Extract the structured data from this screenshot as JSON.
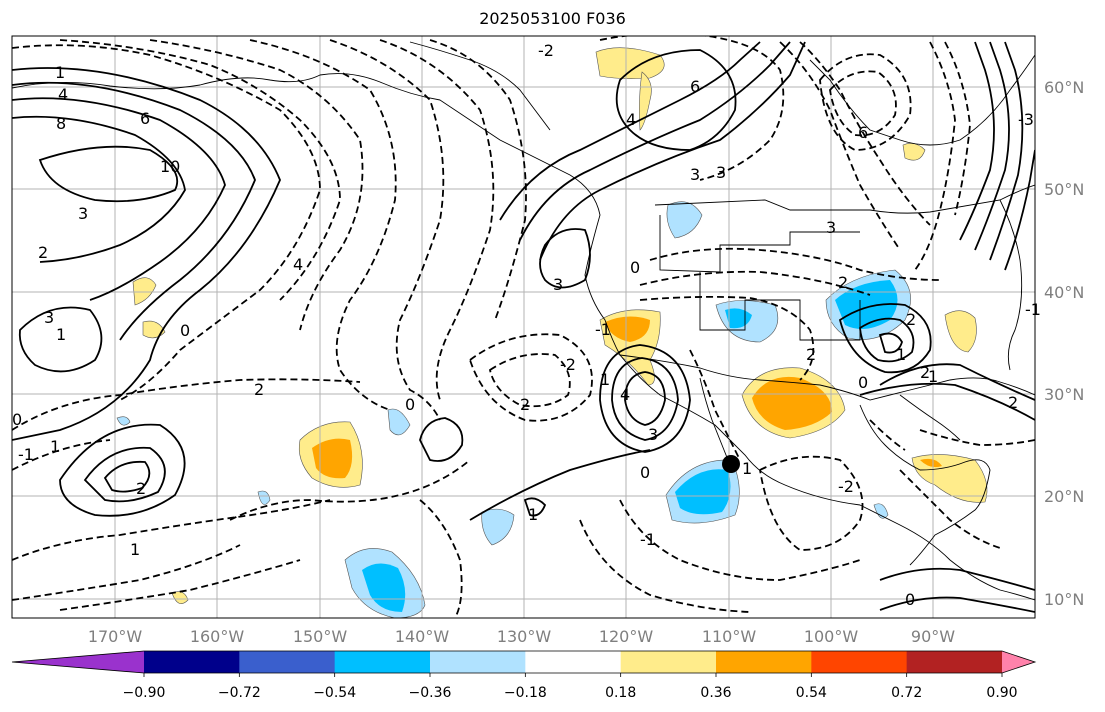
{
  "title": "2025053100 F036",
  "map": {
    "lat_labels": [
      "60°N",
      "50°N",
      "40°N",
      "30°N",
      "20°N",
      "10°N"
    ],
    "lon_labels": [
      "170°W",
      "160°W",
      "150°W",
      "140°W",
      "130°W",
      "120°W",
      "110°W",
      "100°W",
      "90°W"
    ],
    "contour_labels": [
      "1",
      "4",
      "8",
      "6",
      "10",
      "3",
      "2",
      "4",
      "3",
      "1",
      "0",
      "2",
      "0",
      "1",
      "-1",
      "2",
      "1",
      "-2",
      "6",
      "4",
      "3",
      "3",
      "0",
      "-1",
      "3",
      "2",
      "1",
      "0",
      "4",
      "3",
      "0",
      "1",
      "3",
      "6",
      "-3",
      "2",
      "-2",
      "2",
      "1",
      "2",
      "0",
      "2",
      "1",
      "2",
      "-2",
      "1",
      "0",
      "-1",
      "-1"
    ]
  },
  "colorbar": {
    "colors": [
      "#9a32cd",
      "#00008b",
      "#3a5fcd",
      "#00bfff",
      "#b0e2ff",
      "#ffffff",
      "#ffec8b",
      "#ffa500",
      "#ff4500",
      "#b22222",
      "#ff82ab"
    ],
    "tick_labels": [
      "−0.90",
      "−0.72",
      "−0.54",
      "−0.36",
      "−0.18",
      "0.18",
      "0.36",
      "0.54",
      "0.72",
      "0.90"
    ]
  }
}
